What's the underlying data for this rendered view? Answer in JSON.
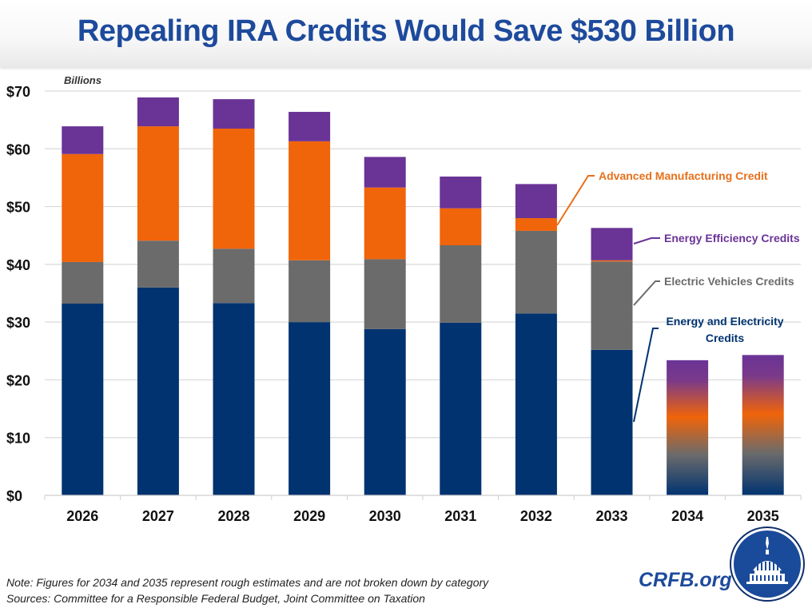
{
  "header": {
    "title": "Repealing IRA Credits Would Save $530 Billion"
  },
  "chart_data": {
    "type": "bar",
    "stacked": true,
    "title": "Repealing IRA Credits Would Save $530 Billion",
    "ylabel": "Billions",
    "xlabel": "",
    "ylim": [
      0,
      70
    ],
    "yticks": [
      0,
      10,
      20,
      30,
      40,
      50,
      60,
      70
    ],
    "ytick_labels": [
      "$0",
      "$10",
      "$20",
      "$30",
      "$40",
      "$50",
      "$60",
      "$70"
    ],
    "grid": true,
    "categories": [
      "2026",
      "2027",
      "2028",
      "2029",
      "2030",
      "2031",
      "2032",
      "2033",
      "2034",
      "2035"
    ],
    "series": [
      {
        "name": "Energy and Electricity Credits",
        "color": "#003370",
        "values": [
          33.2,
          36.0,
          33.3,
          30.0,
          28.8,
          29.9,
          31.5,
          25.2,
          null,
          null
        ]
      },
      {
        "name": "Electric Vehicles Credits",
        "color": "#6b6b6b",
        "values": [
          7.2,
          8.1,
          9.4,
          10.7,
          12.1,
          13.4,
          14.3,
          15.3,
          null,
          null
        ]
      },
      {
        "name": "Advanced Manufacturing Credit",
        "color": "#f0640a",
        "values": [
          18.7,
          19.8,
          20.8,
          20.6,
          12.4,
          6.4,
          2.2,
          0.2,
          null,
          null
        ]
      },
      {
        "name": "Energy Efficiency Credits",
        "color": "#6a3396",
        "values": [
          4.8,
          5.0,
          5.1,
          5.1,
          5.3,
          5.5,
          5.9,
          5.6,
          null,
          null
        ]
      }
    ],
    "estimated_totals": {
      "2034": 23.4,
      "2035": 24.3
    },
    "legend": [
      {
        "label": "Advanced Manufacturing Credit",
        "color": "#e8701a",
        "placement": "right-upper"
      },
      {
        "label": "Energy Efficiency Credits",
        "color": "#6a3396",
        "placement": "right"
      },
      {
        "label": "Electric Vehicles Credits",
        "color": "#6b6b6b",
        "placement": "right"
      },
      {
        "label": "Energy and Electricity Credits",
        "color": "#003370",
        "placement": "right-lower"
      }
    ]
  },
  "footer": {
    "note": "Note: Figures for 2034 and 2035 represent rough estimates and are not broken down by category",
    "sources": "Sources: Committee for a Responsible Federal Budget, Joint Committee on Taxation",
    "brand": "CRFB.org"
  }
}
